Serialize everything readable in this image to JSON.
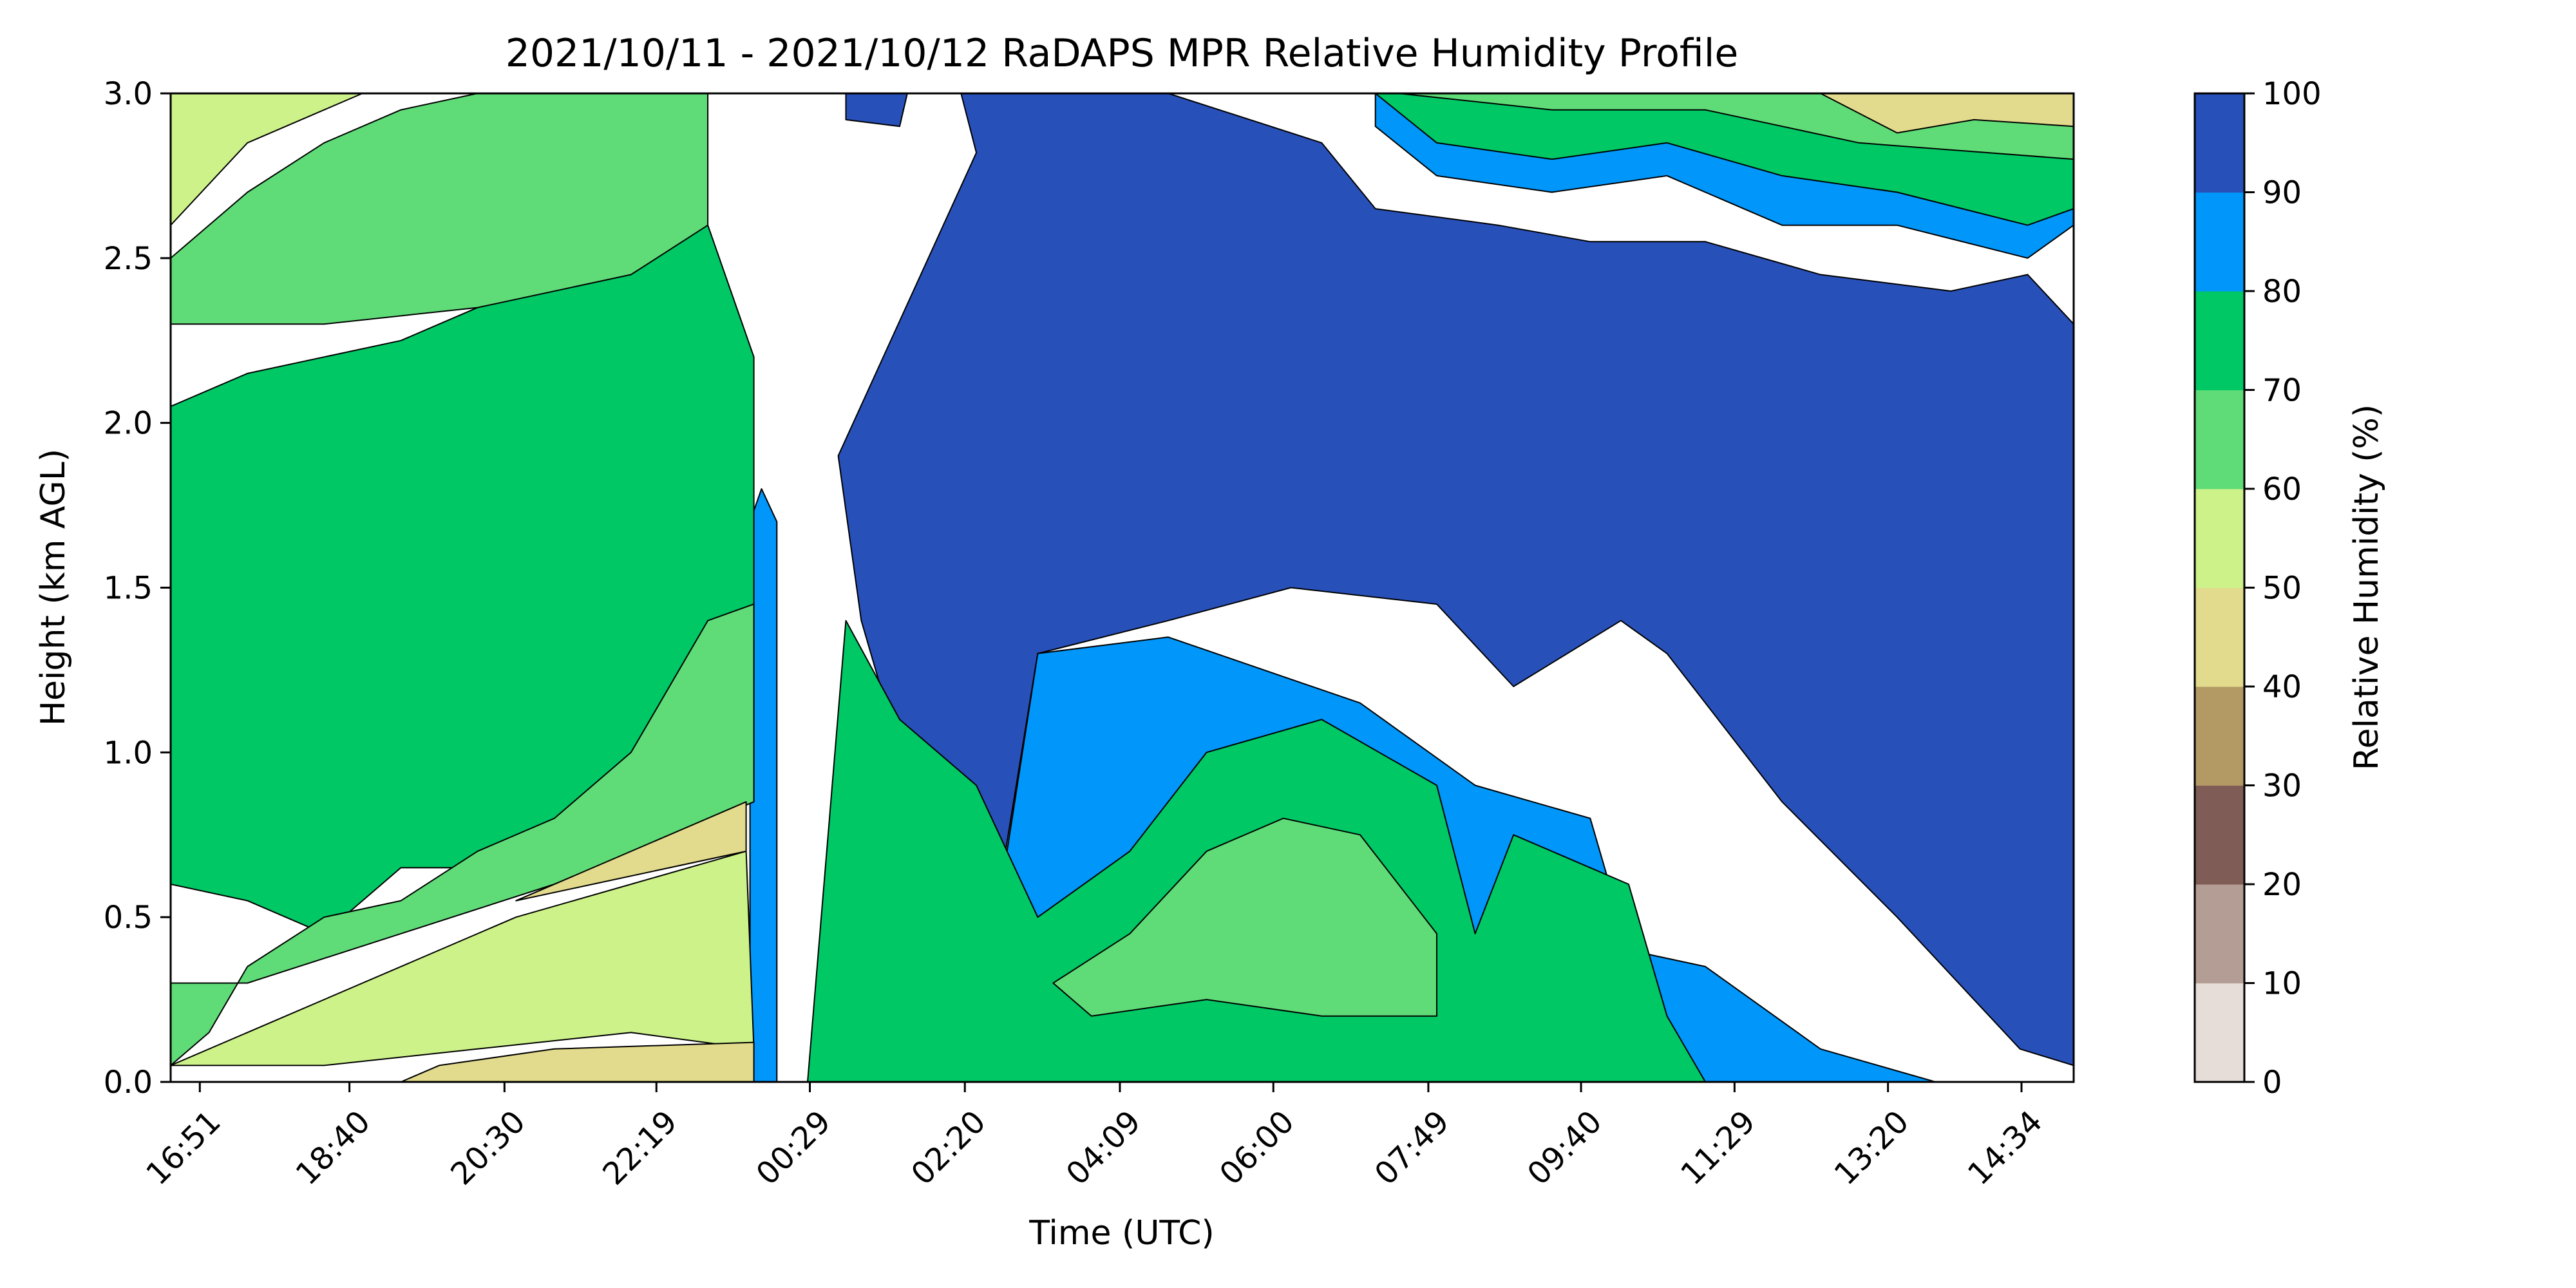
{
  "chart_data": {
    "type": "heatmap",
    "title": "2021/10/11 - 2021/10/12 RaDAPS MPR Relative Humidity Profile",
    "xlabel": "Time (UTC)",
    "ylabel": "Height (km AGL)",
    "xlim": [
      0,
      24.8
    ],
    "ylim": [
      0,
      3.0
    ],
    "x_ticks": [
      {
        "pos": 0.38,
        "label": "16:51"
      },
      {
        "pos": 2.33,
        "label": "18:40"
      },
      {
        "pos": 4.35,
        "label": "20:30"
      },
      {
        "pos": 6.33,
        "label": "22:19"
      },
      {
        "pos": 8.33,
        "label": "00:29"
      },
      {
        "pos": 10.35,
        "label": "02:20"
      },
      {
        "pos": 12.37,
        "label": "04:09"
      },
      {
        "pos": 14.37,
        "label": "06:00"
      },
      {
        "pos": 16.39,
        "label": "07:49"
      },
      {
        "pos": 18.38,
        "label": "09:40"
      },
      {
        "pos": 20.38,
        "label": "11:29"
      },
      {
        "pos": 22.38,
        "label": "13:20"
      },
      {
        "pos": 24.12,
        "label": "14:34"
      }
    ],
    "y_ticks": [
      0.0,
      0.5,
      1.0,
      1.5,
      2.0,
      2.5,
      3.0
    ],
    "y_tick_labels": [
      "0.0",
      "0.5",
      "1.0",
      "1.5",
      "2.0",
      "2.5",
      "3.0"
    ],
    "colorbar": {
      "label": "Relative Humidity (%)",
      "ticks": [
        "0",
        "10",
        "20",
        "30",
        "40",
        "50",
        "60",
        "70",
        "80",
        "90",
        "100"
      ],
      "bins": [
        {
          "range": [
            0,
            10
          ],
          "color": "#e6dcd8"
        },
        {
          "range": [
            10,
            20
          ],
          "color": "#b49d94"
        },
        {
          "range": [
            20,
            30
          ],
          "color": "#7f5c55"
        },
        {
          "range": [
            30,
            40
          ],
          "color": "#b39a65"
        },
        {
          "range": [
            40,
            50
          ],
          "color": "#e2da8c"
        },
        {
          "range": [
            50,
            60
          ],
          "color": "#cdf28a"
        },
        {
          "range": [
            60,
            70
          ],
          "color": "#5fdc77"
        },
        {
          "range": [
            70,
            80
          ],
          "color": "#00c864"
        },
        {
          "range": [
            80,
            90
          ],
          "color": "#0096fa"
        },
        {
          "range": [
            90,
            100
          ],
          "color": "#2850b9"
        }
      ]
    },
    "regions": [
      {
        "rh_bin": "90-100",
        "color": "#2850b9",
        "points": [
          [
            8.7,
            1.9
          ],
          [
            9.0,
            1.4
          ],
          [
            9.5,
            1.0
          ],
          [
            10.0,
            0.4
          ],
          [
            10.6,
            0.3
          ],
          [
            11.3,
            1.3
          ],
          [
            13.0,
            1.4
          ],
          [
            14.6,
            1.5
          ],
          [
            16.5,
            1.45
          ],
          [
            17.5,
            1.2
          ],
          [
            18.9,
            1.4
          ],
          [
            19.5,
            1.3
          ],
          [
            21.0,
            0.85
          ],
          [
            22.5,
            0.5
          ],
          [
            24.1,
            0.1
          ],
          [
            24.8,
            0.05
          ],
          [
            24.8,
            2.3
          ],
          [
            24.2,
            2.45
          ],
          [
            23.2,
            2.4
          ],
          [
            21.5,
            2.45
          ],
          [
            20.0,
            2.55
          ],
          [
            18.5,
            2.55
          ],
          [
            17.3,
            2.6
          ],
          [
            15.7,
            2.65
          ],
          [
            15.0,
            2.85
          ],
          [
            13.0,
            3.0
          ],
          [
            10.3,
            3.0
          ],
          [
            10.5,
            2.82
          ],
          [
            8.7,
            1.9
          ]
        ]
      },
      {
        "rh_bin": "90-100",
        "color": "#2850b9",
        "points": [
          [
            8.8,
            3.0
          ],
          [
            9.6,
            3.0
          ],
          [
            9.5,
            2.9
          ],
          [
            8.8,
            2.92
          ]
        ]
      },
      {
        "rh_bin": "80-90",
        "color": "#0096fa",
        "points": [
          [
            10.6,
            0.0
          ],
          [
            10.3,
            0.3
          ],
          [
            10.7,
            0.4
          ],
          [
            11.3,
            1.3
          ],
          [
            13.0,
            1.35
          ],
          [
            15.5,
            1.15
          ],
          [
            17.0,
            0.9
          ],
          [
            18.5,
            0.8
          ],
          [
            19.0,
            0.4
          ],
          [
            20.0,
            0.35
          ],
          [
            21.5,
            0.1
          ],
          [
            23.0,
            0.0
          ]
        ]
      },
      {
        "rh_bin": "80-90",
        "color": "#0096fa",
        "points": [
          [
            15.7,
            2.9
          ],
          [
            16.5,
            2.75
          ],
          [
            18.0,
            2.7
          ],
          [
            19.5,
            2.75
          ],
          [
            21.0,
            2.6
          ],
          [
            22.5,
            2.6
          ],
          [
            24.2,
            2.5
          ],
          [
            24.8,
            2.6
          ],
          [
            24.8,
            3.0
          ],
          [
            15.7,
            3.0
          ]
        ]
      },
      {
        "rh_bin": "80-90",
        "color": "#0096fa",
        "points": [
          [
            7.55,
            0.0
          ],
          [
            7.9,
            0.0
          ],
          [
            7.9,
            1.7
          ],
          [
            7.7,
            1.8
          ],
          [
            7.55,
            1.7
          ]
        ]
      },
      {
        "rh_bin": "70-80",
        "color": "#00c864",
        "points": [
          [
            0.0,
            0.6
          ],
          [
            1.0,
            0.55
          ],
          [
            2.0,
            0.45
          ],
          [
            3.0,
            0.65
          ],
          [
            4.0,
            0.65
          ],
          [
            5.0,
            0.75
          ],
          [
            6.0,
            0.85
          ],
          [
            7.6,
            0.85
          ],
          [
            7.6,
            2.2
          ],
          [
            7.0,
            2.6
          ],
          [
            6.0,
            2.5
          ],
          [
            5.0,
            2.45
          ],
          [
            4.0,
            2.35
          ],
          [
            3.0,
            2.25
          ],
          [
            2.0,
            2.2
          ],
          [
            1.0,
            2.15
          ],
          [
            0.0,
            2.05
          ]
        ]
      },
      {
        "rh_bin": "70-80",
        "color": "#00c864",
        "points": [
          [
            8.3,
            0.0
          ],
          [
            8.8,
            1.4
          ],
          [
            9.5,
            1.1
          ],
          [
            10.5,
            0.9
          ],
          [
            11.3,
            0.5
          ],
          [
            12.5,
            0.7
          ],
          [
            13.5,
            1.0
          ],
          [
            15.0,
            1.1
          ],
          [
            16.5,
            0.9
          ],
          [
            17.0,
            0.45
          ],
          [
            17.5,
            0.75
          ],
          [
            19.0,
            0.6
          ],
          [
            19.5,
            0.2
          ],
          [
            20.0,
            0.0
          ]
        ]
      },
      {
        "rh_bin": "70-80",
        "color": "#00c864",
        "points": [
          [
            15.7,
            3.0
          ],
          [
            24.8,
            3.0
          ],
          [
            24.8,
            2.65
          ],
          [
            24.2,
            2.6
          ],
          [
            22.5,
            2.7
          ],
          [
            21.0,
            2.75
          ],
          [
            19.5,
            2.85
          ],
          [
            18.0,
            2.8
          ],
          [
            16.5,
            2.85
          ]
        ]
      },
      {
        "rh_bin": "60-70",
        "color": "#5fdc77",
        "points": [
          [
            0.0,
            2.5
          ],
          [
            1.0,
            2.7
          ],
          [
            2.0,
            2.85
          ],
          [
            3.0,
            2.95
          ],
          [
            4.0,
            3.0
          ],
          [
            7.0,
            3.0
          ],
          [
            7.0,
            2.6
          ],
          [
            6.0,
            2.45
          ],
          [
            4.0,
            2.35
          ],
          [
            2.0,
            2.3
          ],
          [
            0.0,
            2.3
          ]
        ]
      },
      {
        "rh_bin": "60-70",
        "color": "#5fdc77",
        "points": [
          [
            0.0,
            0.05
          ],
          [
            0.5,
            0.15
          ],
          [
            1.0,
            0.35
          ],
          [
            2.0,
            0.5
          ],
          [
            3.0,
            0.55
          ],
          [
            4.0,
            0.7
          ],
          [
            5.0,
            0.8
          ],
          [
            6.0,
            1.0
          ],
          [
            7.0,
            1.4
          ],
          [
            7.6,
            1.45
          ],
          [
            7.6,
            0.85
          ],
          [
            5.0,
            0.6
          ],
          [
            3.0,
            0.45
          ],
          [
            1.0,
            0.3
          ],
          [
            0.0,
            0.3
          ]
        ]
      },
      {
        "rh_bin": "60-70",
        "color": "#5fdc77",
        "points": [
          [
            11.5,
            0.3
          ],
          [
            12.5,
            0.45
          ],
          [
            13.5,
            0.7
          ],
          [
            14.5,
            0.8
          ],
          [
            15.5,
            0.75
          ],
          [
            16.5,
            0.45
          ],
          [
            16.5,
            0.2
          ],
          [
            15.0,
            0.2
          ],
          [
            13.5,
            0.25
          ],
          [
            12.0,
            0.2
          ]
        ]
      },
      {
        "rh_bin": "60-70",
        "color": "#5fdc77",
        "points": [
          [
            16.0,
            3.0
          ],
          [
            24.8,
            3.0
          ],
          [
            24.8,
            2.8
          ],
          [
            22.0,
            2.85
          ],
          [
            20.0,
            2.95
          ],
          [
            18.0,
            2.95
          ]
        ]
      },
      {
        "rh_bin": "50-60",
        "color": "#cdf28a",
        "points": [
          [
            0.0,
            2.6
          ],
          [
            1.0,
            2.85
          ],
          [
            2.0,
            2.95
          ],
          [
            2.5,
            3.0
          ],
          [
            0.0,
            3.0
          ]
        ]
      },
      {
        "rh_bin": "50-60",
        "color": "#cdf28a",
        "points": [
          [
            0.0,
            0.05
          ],
          [
            1.5,
            0.2
          ],
          [
            3.0,
            0.35
          ],
          [
            4.5,
            0.5
          ],
          [
            6.0,
            0.6
          ],
          [
            7.5,
            0.7
          ],
          [
            7.6,
            0.1
          ],
          [
            6.0,
            0.15
          ],
          [
            4.0,
            0.1
          ],
          [
            2.0,
            0.05
          ]
        ]
      },
      {
        "rh_bin": "40-50",
        "color": "#e2da8c",
        "points": [
          [
            3.0,
            0.0
          ],
          [
            7.6,
            0.0
          ],
          [
            7.6,
            0.12
          ],
          [
            5.0,
            0.1
          ],
          [
            3.5,
            0.05
          ]
        ]
      },
      {
        "rh_bin": "40-50",
        "color": "#e2da8c",
        "points": [
          [
            21.5,
            3.0
          ],
          [
            24.8,
            3.0
          ],
          [
            24.8,
            2.9
          ],
          [
            23.5,
            2.92
          ],
          [
            22.5,
            2.88
          ]
        ]
      },
      {
        "rh_bin": "40-50",
        "color": "#e2da8c",
        "points": [
          [
            4.5,
            0.55
          ],
          [
            6.5,
            0.75
          ],
          [
            7.5,
            0.85
          ],
          [
            7.5,
            0.7
          ],
          [
            5.5,
            0.6
          ]
        ]
      }
    ],
    "grid": false,
    "legend": "colorbar-right"
  }
}
